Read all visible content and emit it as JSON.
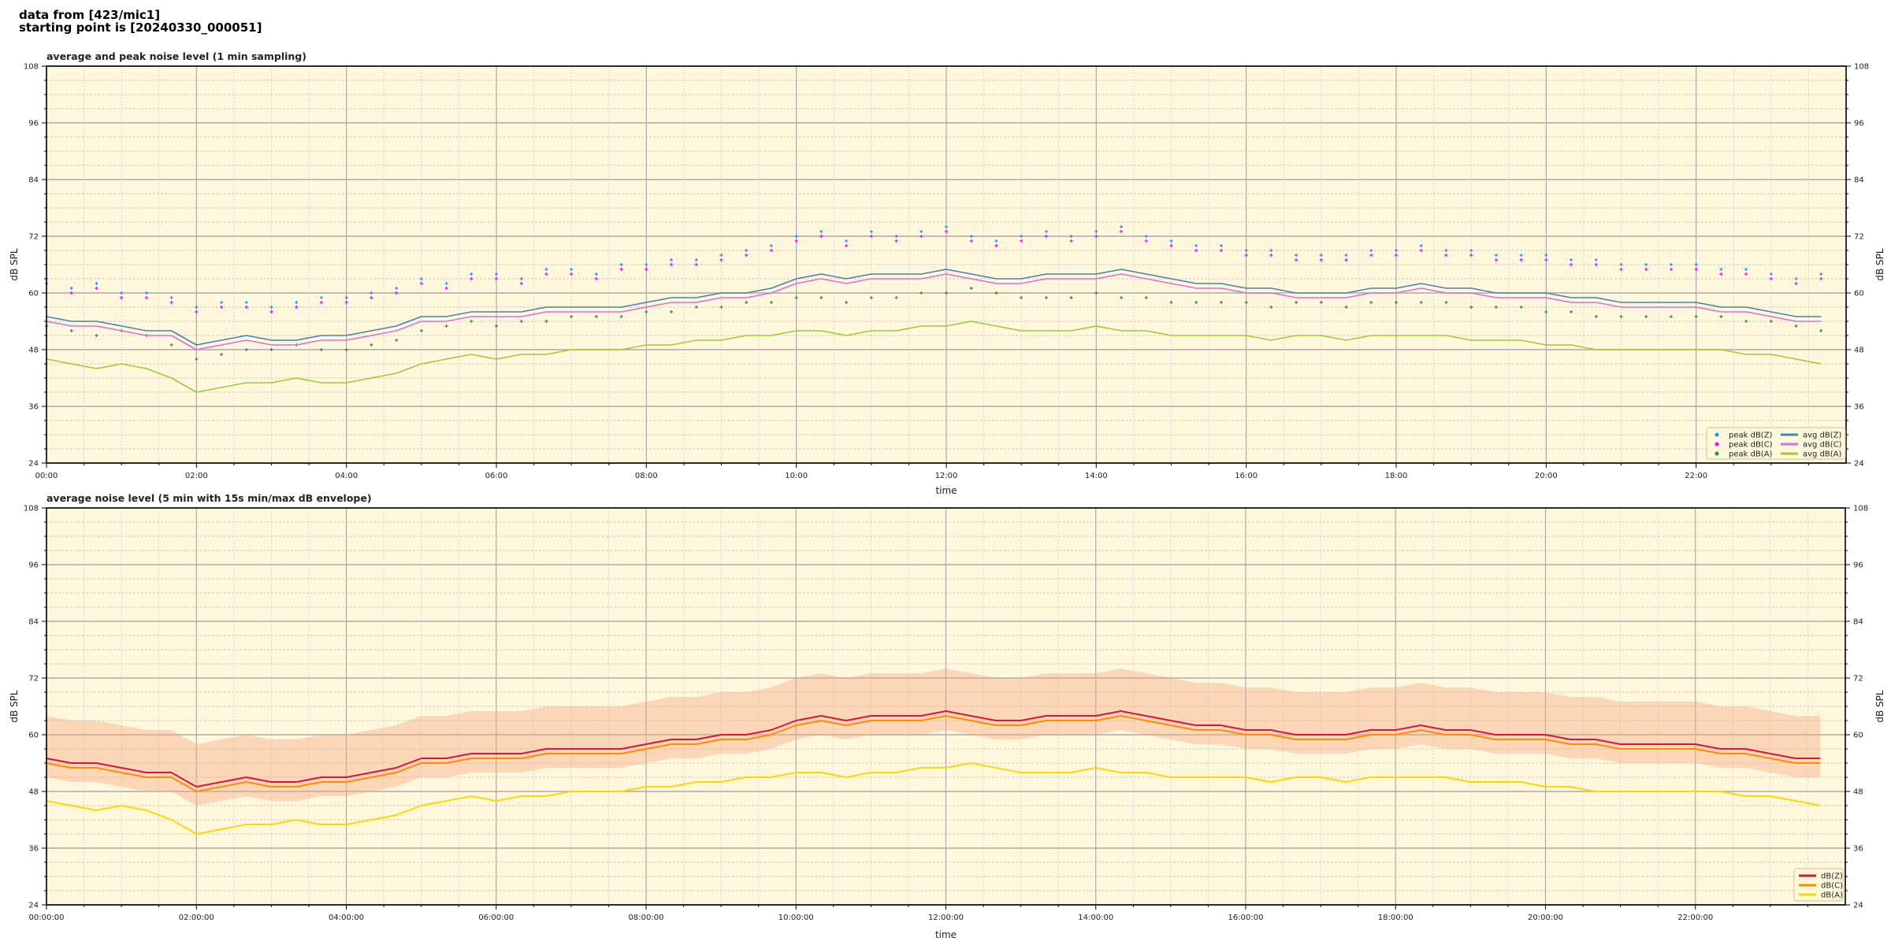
{
  "header": {
    "line1": "data from [423/mic1]",
    "line2": "starting point is [20240330_000051]"
  },
  "colors": {
    "background": "#fff8dc",
    "avg_z": "#4682b4",
    "avg_c": "#da70d6",
    "avg_a": "#9acd32",
    "peak_z": "#1e90ff",
    "peak_c": "#ff00ff",
    "peak_a": "#2e8b57",
    "z": "#dc143c",
    "c": "#ff8c00",
    "a": "#ffd700",
    "envelope": "#f4a582"
  },
  "chart_data": [
    {
      "type": "line",
      "title": "average and peak noise level (1 min sampling)",
      "xlabel": "time",
      "ylabel": "dB SPL",
      "ylim": [
        24,
        108
      ],
      "yticks": [
        24,
        36,
        48,
        60,
        72,
        84,
        96,
        108
      ],
      "xlim_hours": [
        0,
        24
      ],
      "xtick_labels": [
        "00:00",
        "02:00",
        "04:00",
        "06:00",
        "08:00",
        "10:00",
        "12:00",
        "14:00",
        "16:00",
        "18:00",
        "20:00",
        "22:00"
      ],
      "grid": true,
      "legend_placement": "lower-right",
      "x": [
        "00:00",
        "00:20",
        "00:40",
        "01:00",
        "01:20",
        "01:40",
        "02:00",
        "02:20",
        "02:40",
        "03:00",
        "03:20",
        "03:40",
        "04:00",
        "04:20",
        "04:40",
        "05:00",
        "05:20",
        "05:40",
        "06:00",
        "06:20",
        "06:40",
        "07:00",
        "07:20",
        "07:40",
        "08:00",
        "08:20",
        "08:40",
        "09:00",
        "09:20",
        "09:40",
        "10:00",
        "10:20",
        "10:40",
        "11:00",
        "11:20",
        "11:40",
        "12:00",
        "12:20",
        "12:40",
        "13:00",
        "13:20",
        "13:40",
        "14:00",
        "14:20",
        "14:40",
        "15:00",
        "15:20",
        "15:40",
        "16:00",
        "16:20",
        "16:40",
        "17:00",
        "17:20",
        "17:40",
        "18:00",
        "18:20",
        "18:40",
        "19:00",
        "19:20",
        "19:40",
        "20:00",
        "20:20",
        "20:40",
        "21:00",
        "21:20",
        "21:40",
        "22:00",
        "22:20",
        "22:40",
        "23:00",
        "23:20",
        "23:40"
      ],
      "series": [
        {
          "name": "peak dB(Z)",
          "kind": "scatter",
          "color_key": "peak_z",
          "values": [
            63,
            61,
            62,
            60,
            60,
            59,
            57,
            58,
            58,
            57,
            58,
            59,
            59,
            60,
            61,
            63,
            62,
            64,
            64,
            63,
            65,
            65,
            64,
            66,
            66,
            67,
            67,
            68,
            69,
            70,
            72,
            73,
            71,
            73,
            72,
            73,
            74,
            72,
            71,
            72,
            73,
            72,
            73,
            74,
            72,
            71,
            70,
            70,
            69,
            69,
            68,
            68,
            68,
            69,
            69,
            70,
            69,
            69,
            68,
            68,
            68,
            67,
            67,
            66,
            66,
            66,
            66,
            65,
            65,
            64,
            63,
            64
          ]
        },
        {
          "name": "peak dB(C)",
          "kind": "scatter",
          "color_key": "peak_c",
          "values": [
            62,
            60,
            61,
            59,
            59,
            58,
            56,
            57,
            57,
            56,
            57,
            58,
            58,
            59,
            60,
            62,
            61,
            63,
            63,
            62,
            64,
            64,
            63,
            65,
            65,
            66,
            66,
            67,
            68,
            69,
            71,
            72,
            70,
            72,
            71,
            72,
            73,
            71,
            70,
            71,
            72,
            71,
            72,
            73,
            71,
            70,
            69,
            69,
            68,
            68,
            67,
            67,
            67,
            68,
            68,
            69,
            68,
            68,
            67,
            67,
            67,
            66,
            66,
            65,
            65,
            65,
            65,
            64,
            64,
            63,
            62,
            63
          ]
        },
        {
          "name": "peak dB(A)",
          "kind": "scatter",
          "color_key": "peak_a",
          "values": [
            53,
            52,
            51,
            52,
            51,
            49,
            46,
            47,
            48,
            48,
            49,
            48,
            48,
            49,
            50,
            52,
            53,
            54,
            53,
            54,
            54,
            55,
            55,
            55,
            56,
            56,
            57,
            57,
            58,
            58,
            59,
            59,
            58,
            59,
            59,
            60,
            60,
            61,
            60,
            59,
            59,
            59,
            60,
            59,
            59,
            58,
            58,
            58,
            58,
            57,
            58,
            58,
            57,
            58,
            58,
            58,
            58,
            57,
            57,
            57,
            56,
            56,
            55,
            55,
            55,
            55,
            55,
            55,
            54,
            54,
            53,
            52
          ]
        },
        {
          "name": "avg dB(Z)",
          "kind": "line",
          "color_key": "avg_z",
          "values": [
            55,
            54,
            54,
            53,
            52,
            52,
            49,
            50,
            51,
            50,
            50,
            51,
            51,
            52,
            53,
            55,
            55,
            56,
            56,
            56,
            57,
            57,
            57,
            57,
            58,
            59,
            59,
            60,
            60,
            61,
            63,
            64,
            63,
            64,
            64,
            64,
            65,
            64,
            63,
            63,
            64,
            64,
            64,
            65,
            64,
            63,
            62,
            62,
            61,
            61,
            60,
            60,
            60,
            61,
            61,
            62,
            61,
            61,
            60,
            60,
            60,
            59,
            59,
            58,
            58,
            58,
            58,
            57,
            57,
            56,
            55,
            55
          ]
        },
        {
          "name": "avg dB(C)",
          "kind": "line",
          "color_key": "avg_c",
          "values": [
            54,
            53,
            53,
            52,
            51,
            51,
            48,
            49,
            50,
            49,
            49,
            50,
            50,
            51,
            52,
            54,
            54,
            55,
            55,
            55,
            56,
            56,
            56,
            56,
            57,
            58,
            58,
            59,
            59,
            60,
            62,
            63,
            62,
            63,
            63,
            63,
            64,
            63,
            62,
            62,
            63,
            63,
            63,
            64,
            63,
            62,
            61,
            61,
            60,
            60,
            59,
            59,
            59,
            60,
            60,
            61,
            60,
            60,
            59,
            59,
            59,
            58,
            58,
            57,
            57,
            57,
            57,
            56,
            56,
            55,
            54,
            54
          ]
        },
        {
          "name": "avg dB(A)",
          "kind": "line",
          "color_key": "avg_a",
          "values": [
            46,
            45,
            44,
            45,
            44,
            42,
            39,
            40,
            41,
            41,
            42,
            41,
            41,
            42,
            43,
            45,
            46,
            47,
            46,
            47,
            47,
            48,
            48,
            48,
            49,
            49,
            50,
            50,
            51,
            51,
            52,
            52,
            51,
            52,
            52,
            53,
            53,
            54,
            53,
            52,
            52,
            52,
            53,
            52,
            52,
            51,
            51,
            51,
            51,
            50,
            51,
            51,
            50,
            51,
            51,
            51,
            51,
            50,
            50,
            50,
            49,
            49,
            48,
            48,
            48,
            48,
            48,
            48,
            47,
            47,
            46,
            45
          ]
        }
      ]
    },
    {
      "type": "line",
      "title": "average noise level (5 min with 15s min/max dB envelope)",
      "xlabel": "time",
      "ylabel": "dB SPL",
      "ylim": [
        24,
        108
      ],
      "yticks": [
        24,
        36,
        48,
        60,
        72,
        84,
        96,
        108
      ],
      "xlim_hours": [
        0,
        24
      ],
      "xtick_labels": [
        "00:00:00",
        "02:00:00",
        "04:00:00",
        "06:00:00",
        "08:00:00",
        "10:00:00",
        "12:00:00",
        "14:00:00",
        "16:00:00",
        "18:00:00",
        "20:00:00",
        "22:00:00"
      ],
      "grid": true,
      "legend_placement": "lower-right",
      "x": [
        "00:00",
        "00:20",
        "00:40",
        "01:00",
        "01:20",
        "01:40",
        "02:00",
        "02:20",
        "02:40",
        "03:00",
        "03:20",
        "03:40",
        "04:00",
        "04:20",
        "04:40",
        "05:00",
        "05:20",
        "05:40",
        "06:00",
        "06:20",
        "06:40",
        "07:00",
        "07:20",
        "07:40",
        "08:00",
        "08:20",
        "08:40",
        "09:00",
        "09:20",
        "09:40",
        "10:00",
        "10:20",
        "10:40",
        "11:00",
        "11:20",
        "11:40",
        "12:00",
        "12:20",
        "12:40",
        "13:00",
        "13:20",
        "13:40",
        "14:00",
        "14:20",
        "14:40",
        "15:00",
        "15:20",
        "15:40",
        "16:00",
        "16:20",
        "16:40",
        "17:00",
        "17:20",
        "17:40",
        "18:00",
        "18:20",
        "18:40",
        "19:00",
        "19:20",
        "19:40",
        "20:00",
        "20:20",
        "20:40",
        "21:00",
        "21:20",
        "21:40",
        "22:00",
        "22:20",
        "22:40",
        "23:00",
        "23:20",
        "23:40"
      ],
      "envelope": {
        "color_key": "envelope",
        "max": [
          64,
          63,
          63,
          62,
          61,
          61,
          58,
          59,
          60,
          59,
          59,
          60,
          60,
          61,
          62,
          64,
          64,
          65,
          65,
          65,
          66,
          66,
          66,
          66,
          67,
          68,
          68,
          69,
          69,
          70,
          72,
          73,
          72,
          73,
          73,
          73,
          74,
          73,
          72,
          72,
          73,
          73,
          73,
          74,
          73,
          72,
          71,
          71,
          70,
          70,
          69,
          69,
          69,
          70,
          70,
          71,
          70,
          70,
          69,
          69,
          69,
          68,
          68,
          67,
          67,
          67,
          67,
          66,
          66,
          65,
          64,
          64
        ],
        "min": [
          51,
          50,
          50,
          49,
          48,
          48,
          45,
          46,
          47,
          46,
          46,
          47,
          47,
          48,
          49,
          51,
          51,
          52,
          52,
          52,
          53,
          53,
          53,
          53,
          54,
          55,
          55,
          56,
          56,
          57,
          59,
          60,
          59,
          60,
          60,
          60,
          61,
          60,
          59,
          59,
          60,
          60,
          60,
          61,
          60,
          59,
          58,
          58,
          57,
          57,
          56,
          56,
          56,
          57,
          57,
          58,
          57,
          57,
          56,
          56,
          56,
          55,
          55,
          54,
          54,
          54,
          54,
          53,
          53,
          52,
          51,
          51
        ]
      },
      "series": [
        {
          "name": "dB(Z)",
          "kind": "line",
          "color_key": "z",
          "values": [
            55,
            54,
            54,
            53,
            52,
            52,
            49,
            50,
            51,
            50,
            50,
            51,
            51,
            52,
            53,
            55,
            55,
            56,
            56,
            56,
            57,
            57,
            57,
            57,
            58,
            59,
            59,
            60,
            60,
            61,
            63,
            64,
            63,
            64,
            64,
            64,
            65,
            64,
            63,
            63,
            64,
            64,
            64,
            65,
            64,
            63,
            62,
            62,
            61,
            61,
            60,
            60,
            60,
            61,
            61,
            62,
            61,
            61,
            60,
            60,
            60,
            59,
            59,
            58,
            58,
            58,
            58,
            57,
            57,
            56,
            55,
            55
          ]
        },
        {
          "name": "dB(C)",
          "kind": "line",
          "color_key": "c",
          "values": [
            54,
            53,
            53,
            52,
            51,
            51,
            48,
            49,
            50,
            49,
            49,
            50,
            50,
            51,
            52,
            54,
            54,
            55,
            55,
            55,
            56,
            56,
            56,
            56,
            57,
            58,
            58,
            59,
            59,
            60,
            62,
            63,
            62,
            63,
            63,
            63,
            64,
            63,
            62,
            62,
            63,
            63,
            63,
            64,
            63,
            62,
            61,
            61,
            60,
            60,
            59,
            59,
            59,
            60,
            60,
            61,
            60,
            60,
            59,
            59,
            59,
            58,
            58,
            57,
            57,
            57,
            57,
            56,
            56,
            55,
            54,
            54
          ]
        },
        {
          "name": "dB(A)",
          "kind": "line",
          "color_key": "a",
          "values": [
            46,
            45,
            44,
            45,
            44,
            42,
            39,
            40,
            41,
            41,
            42,
            41,
            41,
            42,
            43,
            45,
            46,
            47,
            46,
            47,
            47,
            48,
            48,
            48,
            49,
            49,
            50,
            50,
            51,
            51,
            52,
            52,
            51,
            52,
            52,
            53,
            53,
            54,
            53,
            52,
            52,
            52,
            53,
            52,
            52,
            51,
            51,
            51,
            51,
            50,
            51,
            51,
            50,
            51,
            51,
            51,
            51,
            50,
            50,
            50,
            49,
            49,
            48,
            48,
            48,
            48,
            48,
            48,
            47,
            47,
            46,
            45
          ]
        }
      ]
    }
  ]
}
